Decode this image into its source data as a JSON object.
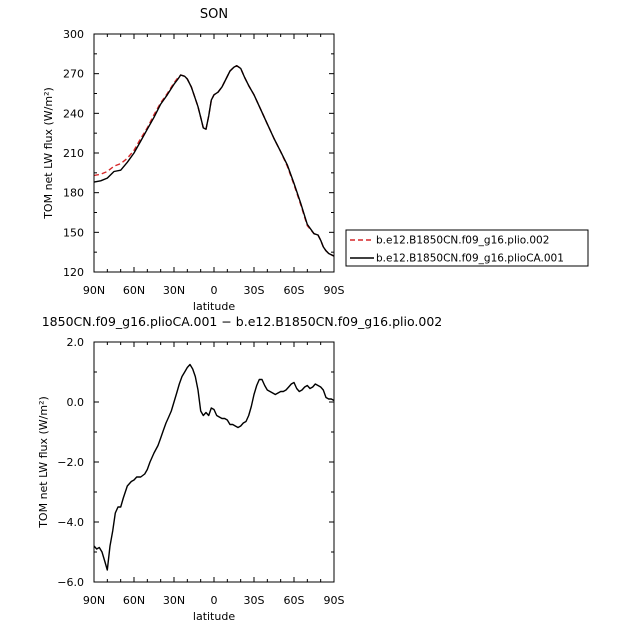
{
  "figure": {
    "background": "#ffffff"
  },
  "chart_data": [
    {
      "type": "line",
      "title": "SON",
      "xlabel": "latitude",
      "ylabel": "TOM net LW flux (W/m²)",
      "xlim": [
        90,
        -90
      ],
      "ylim": [
        120,
        300
      ],
      "xticks": [
        90,
        60,
        30,
        0,
        -30,
        -60,
        -90
      ],
      "xtick_labels": [
        "90N",
        "60N",
        "30N",
        "0",
        "30S",
        "60S",
        "90S"
      ],
      "yticks": [
        120,
        150,
        180,
        210,
        240,
        270,
        300
      ],
      "ytick_labels": [
        "120",
        "150",
        "180",
        "210",
        "240",
        "270",
        "300"
      ],
      "legend_position": "right",
      "series": [
        {
          "name": "b.e12.B1850CN.f09_g16.plio.002",
          "color": "#d62728",
          "dash": "dashed",
          "x": [
            90,
            85,
            80,
            75,
            70,
            65,
            60,
            55,
            50,
            45,
            40,
            35,
            30,
            27,
            25,
            22,
            20,
            17,
            15,
            12,
            10,
            8,
            6,
            4,
            2,
            0,
            -3,
            -6,
            -9,
            -12,
            -15,
            -17,
            -20,
            -23,
            -26,
            -30,
            -35,
            -40,
            -45,
            -50,
            -55,
            -60,
            -65,
            -70,
            -75,
            -78,
            -80,
            -82,
            -84,
            -86,
            -88,
            -90
          ],
          "y": [
            193,
            194,
            196,
            200,
            202,
            206,
            212,
            221,
            229,
            239,
            248,
            255,
            263,
            267,
            269,
            268,
            266,
            260,
            254,
            245,
            237,
            229,
            228,
            238,
            250,
            254,
            256,
            260,
            266,
            272,
            275,
            276,
            274,
            267,
            261,
            254,
            243,
            232,
            221,
            211,
            200,
            186,
            171,
            155,
            149,
            148,
            144,
            139,
            136,
            134,
            133,
            132
          ]
        },
        {
          "name": "b.e12.B1850CN.f09_g16.plioCA.001",
          "color": "#000000",
          "dash": "solid",
          "x": [
            90,
            85,
            80,
            75,
            70,
            65,
            60,
            55,
            50,
            45,
            40,
            35,
            30,
            27,
            25,
            22,
            20,
            17,
            15,
            12,
            10,
            8,
            6,
            4,
            2,
            0,
            -3,
            -6,
            -9,
            -12,
            -15,
            -17,
            -20,
            -23,
            -26,
            -30,
            -35,
            -40,
            -45,
            -50,
            -55,
            -60,
            -65,
            -70,
            -75,
            -78,
            -80,
            -82,
            -84,
            -86,
            -88,
            -90
          ],
          "y": [
            188,
            189,
            191,
            196,
            197,
            203,
            210,
            219,
            228,
            237,
            247,
            254,
            262,
            266,
            269,
            268,
            266,
            260,
            254,
            245,
            237,
            229,
            228,
            238,
            250,
            254,
            256,
            260,
            266,
            272,
            275,
            276,
            274,
            267,
            261,
            254,
            243,
            232,
            221,
            211,
            201,
            187,
            172,
            156,
            149,
            148,
            144,
            139,
            136,
            134,
            133,
            132
          ]
        }
      ]
    },
    {
      "type": "line",
      "title": "1850CN.f09_g16.plioCA.001 − b.e12.B1850CN.f09_g16.plio.002",
      "xlabel": "latitude",
      "ylabel": "TOM net LW flux (W/m²)",
      "xlim": [
        90,
        -90
      ],
      "ylim": [
        -6.0,
        2.0
      ],
      "xticks": [
        90,
        60,
        30,
        0,
        -30,
        -60,
        -90
      ],
      "xtick_labels": [
        "90N",
        "60N",
        "30N",
        "0",
        "30S",
        "60S",
        "90S"
      ],
      "yticks": [
        -6.0,
        -4.0,
        -2.0,
        0.0,
        2.0
      ],
      "ytick_labels": [
        "−6.0",
        "−4.0",
        "−2.0",
        "0.0",
        "2.0"
      ],
      "series": [
        {
          "color": "#000000",
          "dash": "solid",
          "x": [
            90,
            88,
            86,
            84,
            82,
            80,
            78,
            76,
            74,
            72,
            70,
            68,
            65,
            62,
            60,
            58,
            55,
            52,
            50,
            48,
            45,
            42,
            40,
            38,
            36,
            34,
            32,
            30,
            28,
            26,
            24,
            22,
            20,
            18,
            16,
            14,
            12,
            10,
            8,
            6,
            4,
            2,
            0,
            -2,
            -4,
            -6,
            -8,
            -10,
            -12,
            -14,
            -16,
            -18,
            -20,
            -22,
            -24,
            -26,
            -28,
            -30,
            -32,
            -34,
            -36,
            -38,
            -40,
            -42,
            -44,
            -46,
            -48,
            -50,
            -52,
            -54,
            -56,
            -58,
            -60,
            -62,
            -64,
            -66,
            -68,
            -70,
            -72,
            -74,
            -76,
            -78,
            -80,
            -82,
            -84,
            -86,
            -88,
            -90
          ],
          "y": [
            -4.8,
            -4.9,
            -4.85,
            -5.0,
            -5.3,
            -5.6,
            -4.8,
            -4.3,
            -3.7,
            -3.5,
            -3.5,
            -3.2,
            -2.8,
            -2.65,
            -2.6,
            -2.5,
            -2.5,
            -2.4,
            -2.25,
            -2.0,
            -1.7,
            -1.45,
            -1.2,
            -0.95,
            -0.7,
            -0.5,
            -0.3,
            0.0,
            0.3,
            0.6,
            0.85,
            1.0,
            1.15,
            1.25,
            1.1,
            0.85,
            0.4,
            -0.3,
            -0.45,
            -0.35,
            -0.45,
            -0.2,
            -0.25,
            -0.45,
            -0.5,
            -0.55,
            -0.55,
            -0.6,
            -0.75,
            -0.75,
            -0.8,
            -0.85,
            -0.8,
            -0.7,
            -0.65,
            -0.45,
            -0.15,
            0.25,
            0.55,
            0.75,
            0.75,
            0.55,
            0.4,
            0.35,
            0.3,
            0.25,
            0.3,
            0.35,
            0.35,
            0.4,
            0.5,
            0.6,
            0.65,
            0.45,
            0.35,
            0.4,
            0.5,
            0.55,
            0.45,
            0.5,
            0.6,
            0.55,
            0.5,
            0.4,
            0.15,
            0.1,
            0.1,
            0.05
          ]
        }
      ]
    }
  ]
}
